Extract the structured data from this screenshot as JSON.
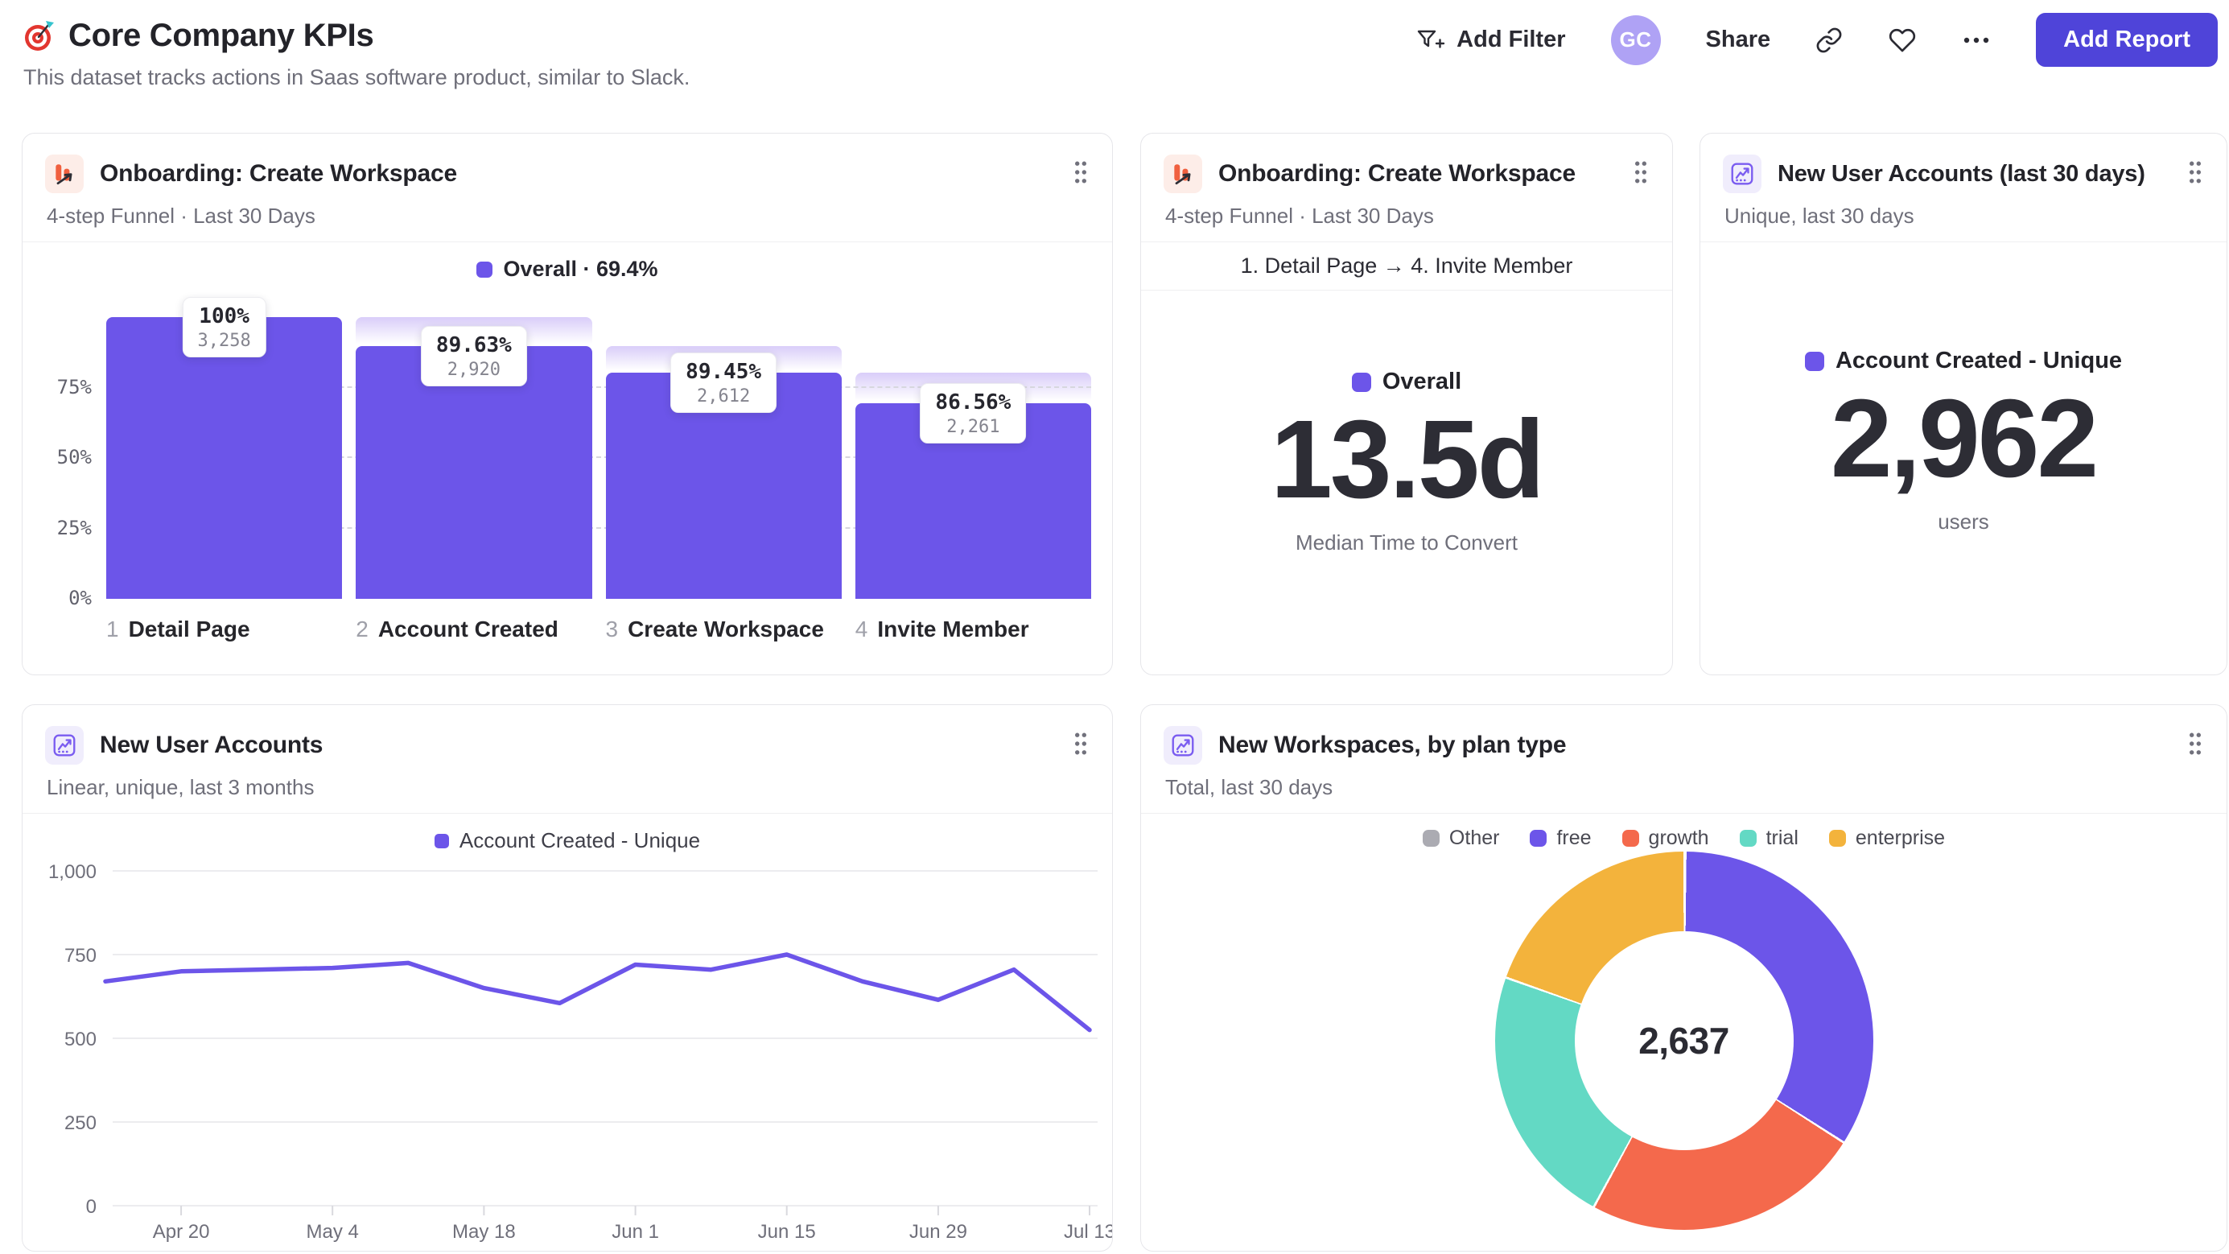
{
  "header": {
    "title": "Core Company KPIs",
    "subtitle": "This dataset tracks actions in Saas software product, similar to Slack.",
    "actions": {
      "add_filter": "Add Filter",
      "avatar_initials": "GC",
      "share": "Share",
      "add_report": "Add Report"
    }
  },
  "icons": {
    "page": "target-dart",
    "add_filter": "funnel-plus",
    "copy_link": "chain-link",
    "favorite": "heart-outline",
    "more": "ellipsis-dots",
    "drag": "grip-dots",
    "funnel_report": "funnel-bars-arrow",
    "insights_report": "line-chart-frame"
  },
  "colors": {
    "purple": "#6C55E9",
    "coral": "#F4694C",
    "teal": "#63D9C4",
    "amber": "#F3B33C",
    "gray": "#ABABB2",
    "indigo_button": "#4F44D9",
    "avatar_bg": "#AFA2F5",
    "funnel_icon": "#F0603F"
  },
  "chart_data": [
    {
      "type": "funnel",
      "title": "Onboarding: Create Workspace",
      "subtitle": "4-step Funnel · Last 30 Days",
      "overall_legend": "Overall · 69.4%",
      "overall_color": "#6C55E9",
      "y_ticks": [
        "75%",
        "50%",
        "25%",
        "0%"
      ],
      "steps": [
        {
          "index": "1",
          "label": "Detail Page",
          "conversion_pct": "100%",
          "count_label": "3,258",
          "count": 3258,
          "cumulative_pct": 100
        },
        {
          "index": "2",
          "label": "Account Created",
          "conversion_pct": "89.63%",
          "count_label": "2,920",
          "count": 2920,
          "cumulative_pct": 89.63
        },
        {
          "index": "3",
          "label": "Create Workspace",
          "conversion_pct": "89.45%",
          "count_label": "2,612",
          "count": 2612,
          "cumulative_pct": 80.17
        },
        {
          "index": "4",
          "label": "Invite Member",
          "conversion_pct": "86.56%",
          "count_label": "2,261",
          "count": 2261,
          "cumulative_pct": 69.4
        }
      ]
    },
    {
      "type": "metric",
      "title": "Onboarding: Create Workspace",
      "subtitle": "4-step Funnel · Last 30 Days",
      "range_label": "1. Detail Page → 4. Invite Member",
      "legend": "Overall",
      "legend_color": "#6C55E9",
      "value": "13.5d",
      "caption": "Median Time to Convert"
    },
    {
      "type": "metric",
      "title": "New User Accounts (last 30 days)",
      "subtitle": "Unique, last 30 days",
      "legend": "Account Created - Unique",
      "legend_color": "#6C55E9",
      "value": "2,962",
      "caption": "users"
    },
    {
      "type": "line",
      "title": "New User Accounts",
      "subtitle": "Linear, unique, last 3 months",
      "legend": "Account Created - Unique",
      "line_color": "#6C55E9",
      "ylim": [
        0,
        1000
      ],
      "y_ticks": [
        1000,
        750,
        500,
        250,
        0
      ],
      "y_tick_labels": [
        "1,000",
        "750",
        "500",
        "250",
        "0"
      ],
      "x": [
        "Apr 13",
        "Apr 20",
        "Apr 27",
        "May 4",
        "May 11",
        "May 18",
        "May 25",
        "Jun 1",
        "Jun 8",
        "Jun 15",
        "Jun 22",
        "Jun 29",
        "Jul 6",
        "Jul 13"
      ],
      "values": [
        670,
        700,
        705,
        710,
        725,
        650,
        605,
        720,
        705,
        750,
        670,
        615,
        705,
        525
      ],
      "x_tick_labels": [
        "Apr 20",
        "May 4",
        "May 18",
        "Jun 1",
        "Jun 15",
        "Jun 29",
        "Jul 13"
      ]
    },
    {
      "type": "donut",
      "title": "New Workspaces, by plan type",
      "subtitle": "Total, last 30 days",
      "center_total": "2,637",
      "draw_start_index": 1,
      "segments": [
        {
          "label": "Other",
          "value": 2,
          "color": "#ABABB2"
        },
        {
          "label": "free",
          "value": 895,
          "color": "#6C55E9"
        },
        {
          "label": "growth",
          "value": 630,
          "color": "#F4694C"
        },
        {
          "label": "trial",
          "value": 593,
          "color": "#63D9C4"
        },
        {
          "label": "enterprise",
          "value": 517,
          "color": "#F3B33C"
        }
      ]
    }
  ]
}
